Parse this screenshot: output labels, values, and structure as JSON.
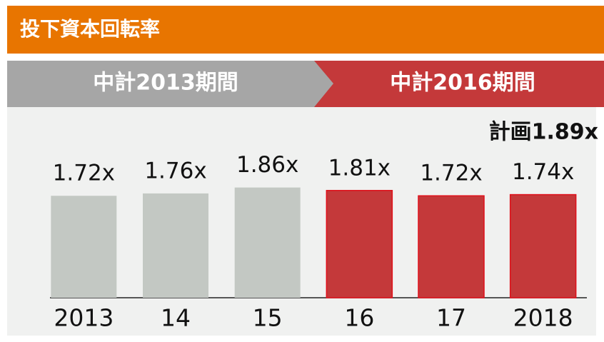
{
  "chart_data": {
    "type": "bar",
    "title": "投下資本回転率",
    "periods": [
      "中計2013期間",
      "中計2016期間"
    ],
    "annotation": "計画1.89x",
    "categories": [
      "2013",
      "14",
      "15",
      "16",
      "17",
      "2018"
    ],
    "values": [
      1.72,
      1.76,
      1.86,
      1.81,
      1.72,
      1.74
    ],
    "value_labels": [
      "1.72x",
      "1.76x",
      "1.86x",
      "1.81x",
      "1.72x",
      "1.74x"
    ],
    "colors": [
      "#c3c8c3",
      "#c3c8c3",
      "#c3c8c3",
      "#c4393a",
      "#c4393a",
      "#c4393a"
    ],
    "ylim": [
      0,
      2
    ]
  }
}
